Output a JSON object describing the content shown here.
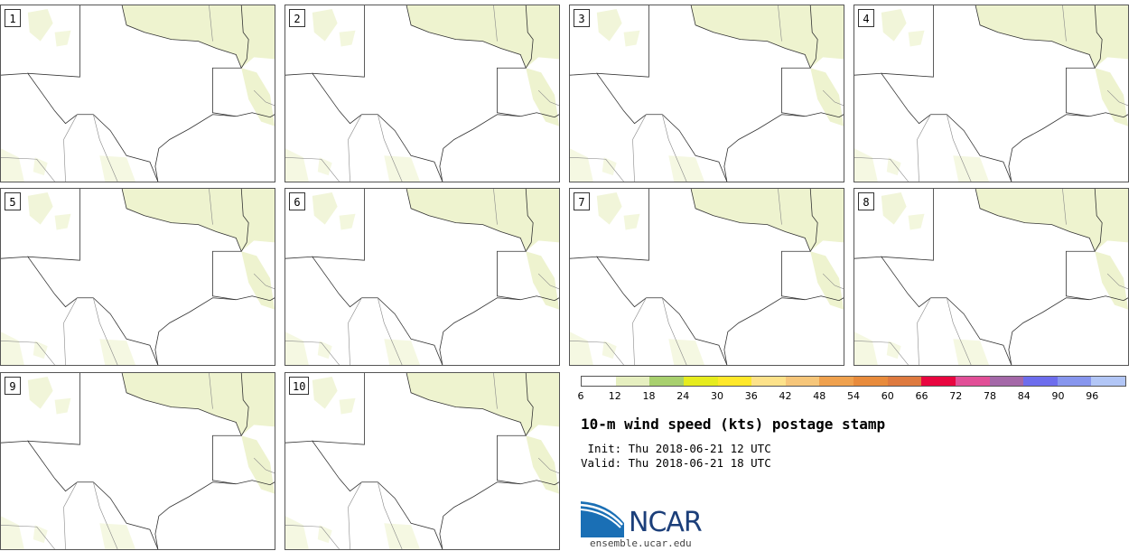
{
  "panels": [
    {
      "label": "1"
    },
    {
      "label": "2"
    },
    {
      "label": "3"
    },
    {
      "label": "4"
    },
    {
      "label": "5"
    },
    {
      "label": "6"
    },
    {
      "label": "7"
    },
    {
      "label": "8"
    },
    {
      "label": "9"
    },
    {
      "label": "10"
    }
  ],
  "legend": {
    "colors": [
      "#ffffff",
      "#e6efc0",
      "#a8d06e",
      "#e6ec1e",
      "#ffe82a",
      "#fde28a",
      "#f6c67a",
      "#efa14e",
      "#e88b3c",
      "#de7a3f",
      "#e8063f",
      "#e14f97",
      "#a468a8",
      "#6d6ded",
      "#8796ee",
      "#b2c6f6"
    ],
    "ticks": [
      "6",
      "12",
      "18",
      "24",
      "30",
      "36",
      "42",
      "48",
      "54",
      "60",
      "66",
      "72",
      "78",
      "84",
      "90",
      "96"
    ]
  },
  "title": "10-m wind speed (kts) postage stamp",
  "init": " Init: Thu 2018-06-21 12 UTC",
  "valid": "Valid: Thu 2018-06-21 18 UTC",
  "logo": {
    "text": "NCAR",
    "url": "ensemble.ucar.edu"
  }
}
